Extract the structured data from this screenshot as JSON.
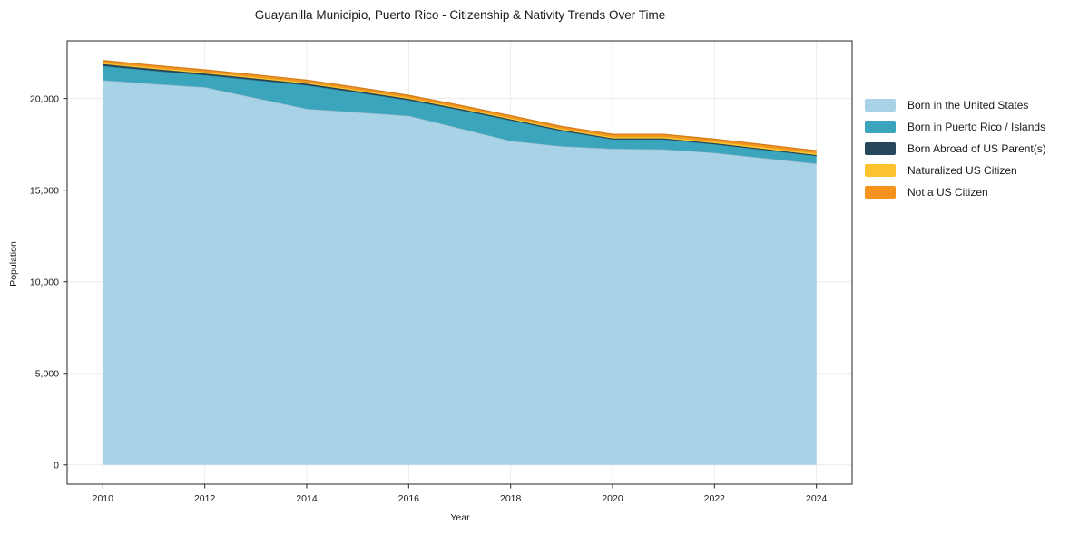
{
  "figure": {
    "background": "#ffffff"
  },
  "chart_data": {
    "type": "area",
    "stacked": true,
    "title": "Guayanilla Municipio, Puerto Rico - Citizenship & Nativity Trends Over Time",
    "xlabel": "Year",
    "ylabel": "Population",
    "x": [
      2010,
      2011,
      2012,
      2013,
      2014,
      2015,
      2016,
      2017,
      2018,
      2019,
      2020,
      2021,
      2022,
      2023,
      2024
    ],
    "series": [
      {
        "name": "Born in the United States",
        "color": "#a8d2e6",
        "values": [
          21000,
          20800,
          20620,
          20030,
          19440,
          19250,
          19060,
          18380,
          17690,
          17400,
          17260,
          17230,
          17040,
          16740,
          16450
        ]
      },
      {
        "name": "Born in Puerto Rico / Islands",
        "color": "#3aa5bd",
        "values": [
          775,
          715,
          655,
          975,
          1285,
          1075,
          845,
          995,
          1115,
          825,
          515,
          545,
          465,
          445,
          415
        ]
      },
      {
        "name": "Born Abroad of US Parent(s)",
        "color": "#27485c",
        "values": [
          100,
          95,
          90,
          85,
          80,
          75,
          70,
          65,
          60,
          55,
          50,
          50,
          50,
          50,
          50
        ]
      },
      {
        "name": "Naturalized US Citizen",
        "color": "#fdc32f",
        "values": [
          90,
          90,
          90,
          90,
          90,
          90,
          90,
          90,
          90,
          90,
          105,
          105,
          110,
          115,
          120
        ]
      },
      {
        "name": "Not a US Citizen",
        "color": "#f6931e",
        "values": [
          110,
          110,
          110,
          110,
          110,
          110,
          110,
          110,
          110,
          110,
          120,
          120,
          120,
          120,
          120
        ]
      }
    ],
    "totals": [
      22075,
      21810,
      21565,
      21290,
      21005,
      20600,
      20175,
      19640,
      19065,
      18480,
      18050,
      18050,
      17785,
      17470,
      17155
    ],
    "xticks": {
      "values": [
        2010,
        2012,
        2014,
        2016,
        2018,
        2020,
        2022,
        2024
      ],
      "labels": [
        "2010",
        "2012",
        "2014",
        "2016",
        "2018",
        "2020",
        "2022",
        "2024"
      ]
    },
    "yticks": {
      "values": [
        0,
        5000,
        10000,
        15000,
        20000
      ],
      "labels": [
        "0",
        "5,000",
        "10,000",
        "15,000",
        "20,000"
      ]
    },
    "xlim": [
      2009.3,
      2024.7
    ],
    "ylim": [
      -1050,
      23150
    ],
    "grid": true,
    "grid_color": "#ebebeb",
    "axis_color": "#262626",
    "text_color": "#1a1a1a",
    "legend_position": "right"
  }
}
